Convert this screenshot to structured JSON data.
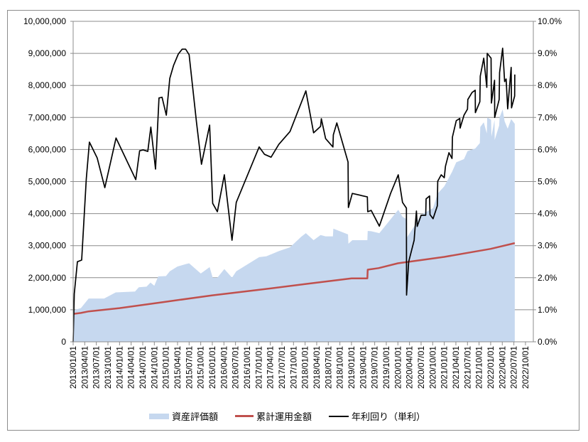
{
  "chart_data": {
    "type": "area+line",
    "y_left": {
      "range": [
        0,
        10000000
      ],
      "ticks": [
        "0",
        "1,000,000",
        "2,000,000",
        "3,000,000",
        "4,000,000",
        "5,000,000",
        "6,000,000",
        "7,000,000",
        "8,000,000",
        "9,000,000",
        "10,000,000"
      ]
    },
    "y_right": {
      "range": [
        0,
        10
      ],
      "ticks": [
        "0.0%",
        "1.0%",
        "2.0%",
        "3.0%",
        "4.0%",
        "5.0%",
        "6.0%",
        "7.0%",
        "8.0%",
        "9.0%",
        "10.0%"
      ]
    },
    "x_ticks": [
      "2013/01/01",
      "2013/04/01",
      "2013/07/01",
      "2013/10/01",
      "2014/01/01",
      "2014/04/01",
      "2014/07/01",
      "2014/10/01",
      "2015/01/01",
      "2015/04/01",
      "2015/07/01",
      "2015/10/01",
      "2016/01/01",
      "2016/04/01",
      "2016/07/01",
      "2016/10/01",
      "2017/01/01",
      "2017/04/01",
      "2017/07/01",
      "2017/10/01",
      "2018/01/01",
      "2018/04/01",
      "2018/07/01",
      "2018/10/01",
      "2019/01/01",
      "2019/04/01",
      "2019/07/01",
      "2019/10/01",
      "2020/01/01",
      "2020/04/01",
      "2020/07/01",
      "2020/10/01",
      "2021/01/01",
      "2021/04/01",
      "2021/07/01",
      "2021/10/01",
      "2022/01/01",
      "2022/04/01",
      "2022/07/01",
      "2022/10/01"
    ],
    "grid": true,
    "legend_position": "bottom",
    "series": [
      {
        "name": "資産評価額",
        "kind": "area",
        "axis": "left",
        "color": "#c6d8ef",
        "points": [
          [
            "2013-01-01",
            980000
          ],
          [
            "2013-03-01",
            1050000
          ],
          [
            "2013-05-01",
            1350000
          ],
          [
            "2013-09-01",
            1350000
          ],
          [
            "2013-12-01",
            1540000
          ],
          [
            "2014-05-01",
            1570000
          ],
          [
            "2014-06-01",
            1700000
          ],
          [
            "2014-08-01",
            1720000
          ],
          [
            "2014-09-01",
            1850000
          ],
          [
            "2014-10-01",
            1750000
          ],
          [
            "2014-11-01",
            2040000
          ],
          [
            "2015-01-01",
            2050000
          ],
          [
            "2015-02-01",
            2200000
          ],
          [
            "2015-04-01",
            2350000
          ],
          [
            "2015-06-01",
            2420000
          ],
          [
            "2015-07-01",
            2450000
          ],
          [
            "2015-10-01",
            2130000
          ],
          [
            "2015-12-10",
            2330000
          ],
          [
            "2016-01-04",
            2000000
          ],
          [
            "2016-02-10",
            2000000
          ],
          [
            "2016-04-04",
            2270000
          ],
          [
            "2016-06-04",
            2000000
          ],
          [
            "2016-07-07",
            2200000
          ],
          [
            "2017-01-04",
            2640000
          ],
          [
            "2017-03-01",
            2670000
          ],
          [
            "2017-06-07",
            2830000
          ],
          [
            "2017-09-04",
            2950000
          ],
          [
            "2017-12-01",
            3280000
          ],
          [
            "2018-01-07",
            3390000
          ],
          [
            "2018-03-07",
            3170000
          ],
          [
            "2018-05-01",
            3330000
          ],
          [
            "2018-06-10",
            3290000
          ],
          [
            "2018-08-07",
            3290000
          ],
          [
            "2018-08-10",
            3530000
          ],
          [
            "2018-12-04",
            3350000
          ],
          [
            "2018-12-07",
            3060000
          ],
          [
            "2019-01-07",
            3170000
          ],
          [
            "2019-05-04",
            3170000
          ],
          [
            "2019-05-07",
            3460000
          ],
          [
            "2019-06-04",
            3450000
          ],
          [
            "2019-08-07",
            3390000
          ],
          [
            "2020-01-04",
            4120000
          ],
          [
            "2020-02-07",
            3900000
          ],
          [
            "2020-03-07",
            3830000
          ],
          [
            "2020-03-08",
            3240000
          ],
          [
            "2020-05-07",
            3600000
          ],
          [
            "2020-07-01",
            3960000
          ],
          [
            "2020-10-04",
            4170000
          ],
          [
            "2020-11-10",
            4630000
          ],
          [
            "2021-01-01",
            4850000
          ],
          [
            "2021-03-01",
            5300000
          ],
          [
            "2021-04-04",
            5600000
          ],
          [
            "2021-06-04",
            5700000
          ],
          [
            "2021-07-01",
            5950000
          ],
          [
            "2021-09-01",
            6030000
          ],
          [
            "2021-10-07",
            6200000
          ],
          [
            "2021-10-10",
            6700000
          ],
          [
            "2021-11-07",
            6850000
          ],
          [
            "2021-12-01",
            6500000
          ],
          [
            "2021-12-04",
            7000000
          ],
          [
            "2022-01-04",
            6930000
          ],
          [
            "2022-01-07",
            6400000
          ],
          [
            "2022-02-01",
            6930000
          ],
          [
            "2022-02-02",
            6300000
          ],
          [
            "2022-03-07",
            6750000
          ],
          [
            "2022-03-10",
            7000000
          ],
          [
            "2022-04-04",
            7250000
          ],
          [
            "2022-04-19",
            6880000
          ],
          [
            "2022-05-13",
            6650000
          ],
          [
            "2022-06-10",
            6950000
          ],
          [
            "2022-07-08",
            6800000
          ]
        ]
      },
      {
        "name": "累計運用金額",
        "kind": "line",
        "axis": "left",
        "color": "#c0504d",
        "points": [
          [
            "2013-01-01",
            870000
          ],
          [
            "2013-03-01",
            900000
          ],
          [
            "2013-05-01",
            950000
          ],
          [
            "2014-01-01",
            1050000
          ],
          [
            "2015-01-01",
            1250000
          ],
          [
            "2016-01-01",
            1450000
          ],
          [
            "2017-01-01",
            1620000
          ],
          [
            "2018-01-01",
            1800000
          ],
          [
            "2019-01-01",
            1980000
          ],
          [
            "2019-05-04",
            1980000
          ],
          [
            "2019-05-07",
            2250000
          ],
          [
            "2019-08-01",
            2300000
          ],
          [
            "2020-01-01",
            2450000
          ],
          [
            "2021-01-01",
            2650000
          ],
          [
            "2022-01-01",
            2900000
          ],
          [
            "2022-07-08",
            3080000
          ]
        ]
      },
      {
        "name": "年利回り（単利）",
        "kind": "line",
        "axis": "right",
        "color": "#000000",
        "points": [
          [
            "2013-01-01",
            0
          ],
          [
            "2013-01-10",
            1.5
          ],
          [
            "2013-02-04",
            2.5
          ],
          [
            "2013-03-07",
            2.55
          ],
          [
            "2013-04-13",
            5.08
          ],
          [
            "2013-05-07",
            6.23
          ],
          [
            "2013-07-07",
            5.74
          ],
          [
            "2013-09-07",
            4.81
          ],
          [
            "2013-12-04",
            6.36
          ],
          [
            "2014-05-07",
            5.06
          ],
          [
            "2014-06-07",
            5.96
          ],
          [
            "2014-07-04",
            5.99
          ],
          [
            "2014-08-10",
            5.94
          ],
          [
            "2014-09-04",
            6.7
          ],
          [
            "2014-10-10",
            5.39
          ],
          [
            "2014-11-07",
            7.61
          ],
          [
            "2014-12-01",
            7.63
          ],
          [
            "2015-01-04",
            7.07
          ],
          [
            "2015-02-01",
            8.22
          ],
          [
            "2015-03-01",
            8.63
          ],
          [
            "2015-04-07",
            8.98
          ],
          [
            "2015-05-07",
            9.13
          ],
          [
            "2015-06-04",
            9.13
          ],
          [
            "2015-07-01",
            8.96
          ],
          [
            "2015-08-28",
            6.85
          ],
          [
            "2015-10-07",
            5.54
          ],
          [
            "2015-12-10",
            6.76
          ],
          [
            "2016-01-04",
            4.32
          ],
          [
            "2016-02-10",
            4.06
          ],
          [
            "2016-04-04",
            5.21
          ],
          [
            "2016-06-04",
            3.17
          ],
          [
            "2016-07-07",
            4.35
          ],
          [
            "2017-01-04",
            6.08
          ],
          [
            "2017-02-16",
            5.85
          ],
          [
            "2017-04-07",
            5.76
          ],
          [
            "2017-06-07",
            6.16
          ],
          [
            "2017-09-04",
            6.56
          ],
          [
            "2018-01-07",
            7.83
          ],
          [
            "2018-03-07",
            6.52
          ],
          [
            "2018-05-01",
            6.72
          ],
          [
            "2018-05-07",
            6.96
          ],
          [
            "2018-06-10",
            6.34
          ],
          [
            "2018-08-07",
            6.08
          ],
          [
            "2018-08-10",
            6.46
          ],
          [
            "2018-09-07",
            6.83
          ],
          [
            "2018-12-04",
            5.61
          ],
          [
            "2018-12-07",
            4.19
          ],
          [
            "2019-01-07",
            4.63
          ],
          [
            "2019-05-04",
            4.52
          ],
          [
            "2019-05-07",
            4.06
          ],
          [
            "2019-06-04",
            4.1
          ],
          [
            "2019-08-07",
            3.61
          ],
          [
            "2019-11-04",
            4.63
          ],
          [
            "2020-01-04",
            5.21
          ],
          [
            "2020-02-07",
            4.35
          ],
          [
            "2020-03-07",
            4.17
          ],
          [
            "2020-03-08",
            1.46
          ],
          [
            "2020-03-25",
            2.5
          ],
          [
            "2020-05-07",
            3.17
          ],
          [
            "2020-05-10",
            3.33
          ],
          [
            "2020-05-25",
            4.08
          ],
          [
            "2020-06-01",
            3.6
          ],
          [
            "2020-07-01",
            3.95
          ],
          [
            "2020-08-07",
            3.95
          ],
          [
            "2020-08-10",
            4.46
          ],
          [
            "2020-09-07",
            4.55
          ],
          [
            "2020-09-10",
            3.97
          ],
          [
            "2020-10-04",
            3.84
          ],
          [
            "2020-11-07",
            4.24
          ],
          [
            "2020-11-10",
            5.01
          ],
          [
            "2020-12-07",
            5.21
          ],
          [
            "2021-01-01",
            5.12
          ],
          [
            "2021-01-10",
            5.48
          ],
          [
            "2021-02-07",
            5.9
          ],
          [
            "2021-03-01",
            5.72
          ],
          [
            "2021-03-04",
            6.39
          ],
          [
            "2021-04-04",
            6.9
          ],
          [
            "2021-05-01",
            6.97
          ],
          [
            "2021-05-04",
            6.67
          ],
          [
            "2021-06-04",
            7.07
          ],
          [
            "2021-07-01",
            7.26
          ],
          [
            "2021-07-04",
            7.56
          ],
          [
            "2021-08-07",
            7.78
          ],
          [
            "2021-09-01",
            7.85
          ],
          [
            "2021-09-02",
            7.15
          ],
          [
            "2021-10-07",
            7.49
          ],
          [
            "2021-10-10",
            8.29
          ],
          [
            "2021-11-07",
            8.85
          ],
          [
            "2021-12-01",
            7.94
          ],
          [
            "2021-12-04",
            9.0
          ],
          [
            "2022-01-04",
            8.85
          ],
          [
            "2022-01-07",
            7.45
          ],
          [
            "2022-02-01",
            8.16
          ],
          [
            "2022-02-02",
            7.0
          ],
          [
            "2022-03-07",
            7.56
          ],
          [
            "2022-03-10",
            8.4
          ],
          [
            "2022-04-04",
            9.16
          ],
          [
            "2022-04-19",
            8.12
          ],
          [
            "2022-05-01",
            8.2
          ],
          [
            "2022-05-13",
            7.27
          ],
          [
            "2022-06-10",
            8.56
          ],
          [
            "2022-06-13",
            7.3
          ],
          [
            "2022-07-07",
            7.67
          ],
          [
            "2022-07-08",
            8.34
          ]
        ]
      }
    ]
  }
}
